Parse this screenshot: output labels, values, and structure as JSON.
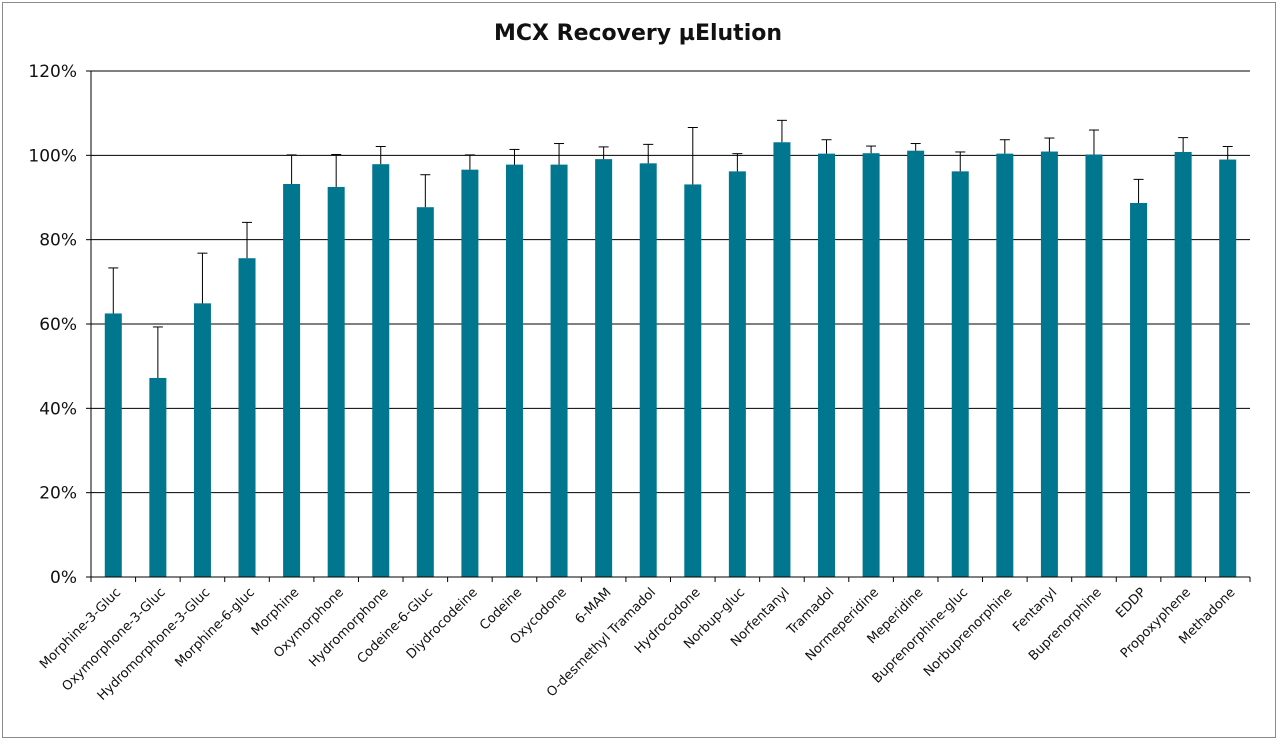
{
  "chart_data": {
    "type": "bar",
    "title": "MCX Recovery µElution",
    "xlabel": "",
    "ylabel": "",
    "ylim": [
      0,
      120
    ],
    "ytick_values": [
      0,
      20,
      40,
      60,
      80,
      100,
      120
    ],
    "ytick_labels": [
      "0%",
      "20%",
      "40%",
      "60%",
      "80%",
      "100%",
      "120%"
    ],
    "grid": true,
    "legend": "none",
    "bar_color": "#00768f",
    "categories": [
      "Morphine-3-Gluc",
      "Oxymorphone-3-Gluc",
      "Hydromorphone-3-Gluc",
      "Morphine-6-gluc",
      "Morphine",
      "Oxymorphone",
      "Hydromorphone",
      "Codeine-6-Gluc",
      "Diydrocodeine",
      "Codeine",
      "Oxycodone",
      "6-MAM",
      "O-desmethyl Tramadol",
      "Hydrocodone",
      "Norbup-gluc",
      "Norfentanyl",
      "Tramadol",
      "Normeperidine",
      "Meperidine",
      "Buprenorphine-gluc",
      "Norbuprenorphine",
      "Fentanyl",
      "Buprenorphine",
      "EDDP",
      "Propoxyphene",
      "Methadone"
    ],
    "values": [
      62.5,
      47.2,
      64.9,
      75.6,
      93.2,
      92.5,
      97.9,
      87.7,
      96.6,
      97.8,
      97.8,
      99.1,
      98.1,
      93.1,
      96.2,
      103.1,
      100.4,
      100.5,
      101.1,
      96.2,
      100.4,
      100.9,
      100.2,
      88.7,
      100.8,
      99.0
    ],
    "error_upper": [
      73.3,
      59.3,
      76.8,
      84.1,
      100.1,
      100.2,
      102.1,
      95.4,
      100.1,
      101.4,
      102.8,
      102.0,
      102.6,
      106.6,
      100.4,
      108.3,
      103.7,
      102.2,
      102.8,
      100.8,
      103.7,
      104.1,
      106.0,
      94.3,
      104.2,
      102.1
    ]
  }
}
